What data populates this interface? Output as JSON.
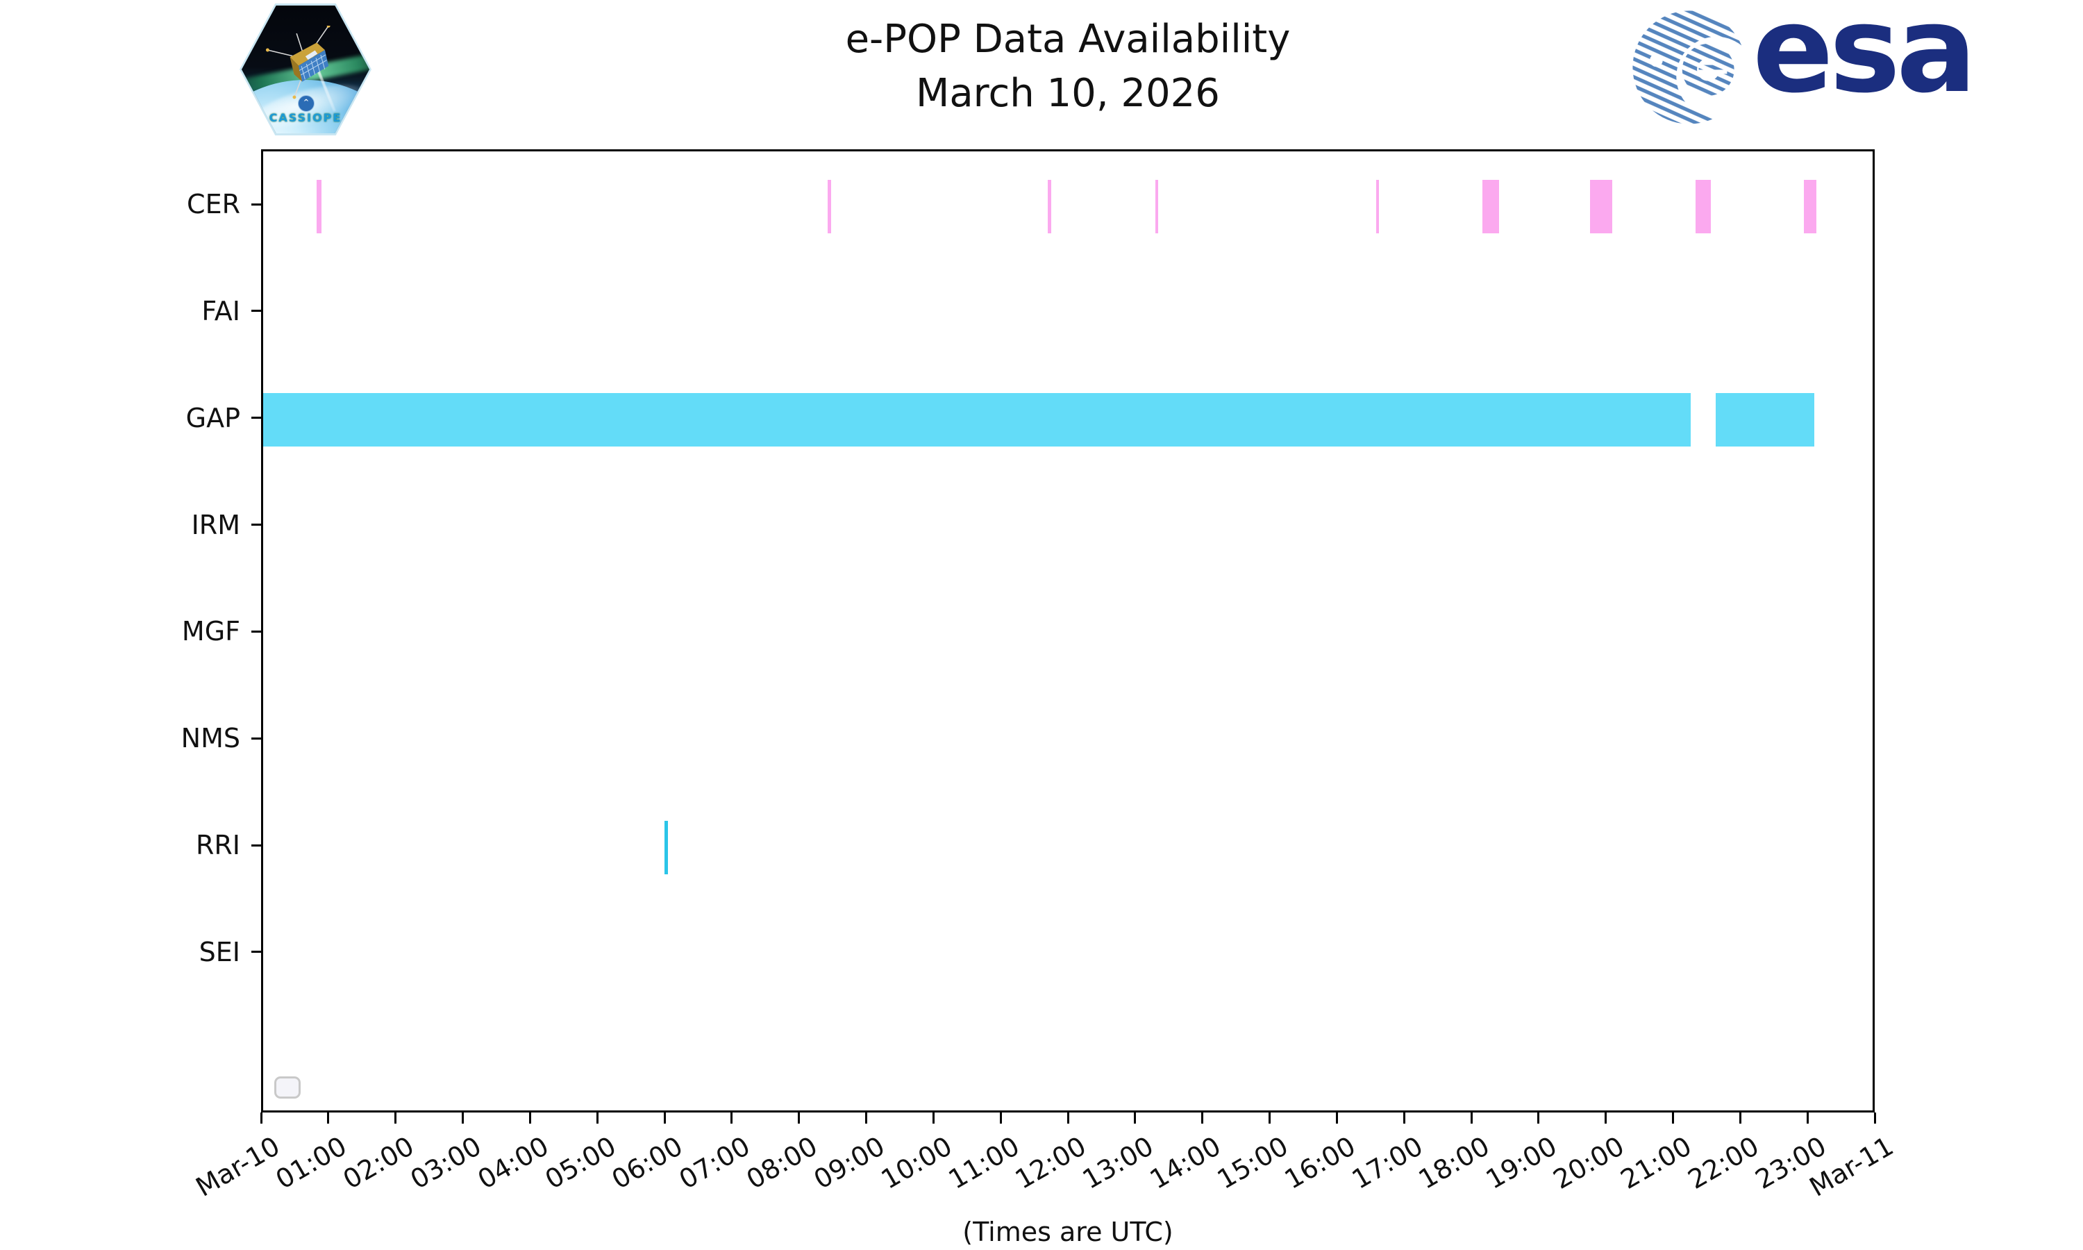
{
  "page": {
    "title_line1": "e-POP Data Availability",
    "title_line2": "March 10, 2026",
    "xaxis_caption": "(Times are UTC)"
  },
  "branding": {
    "mission_patch_text": "CASSIOPE",
    "esa_logo_text": "esa"
  },
  "colors": {
    "cer_pink": "#FBA9EF",
    "gap_cyan": "#63DCF8",
    "rri_cyan": "#2BC5E8",
    "esa_navy": "#1B2E7F",
    "esa_stripe_blue": "#5585BE"
  },
  "chart_data": {
    "type": "bar",
    "subtype": "gantt-availability-timeline",
    "title": "e-POP Data Availability — March 10, 2026",
    "rows": [
      "CER",
      "FAI",
      "GAP",
      "IRM",
      "MGF",
      "NMS",
      "RRI",
      "SEI"
    ],
    "x_tick_labels": [
      "Mar-10",
      "01:00",
      "02:00",
      "03:00",
      "04:00",
      "05:00",
      "06:00",
      "07:00",
      "08:00",
      "09:00",
      "10:00",
      "11:00",
      "12:00",
      "13:00",
      "14:00",
      "15:00",
      "16:00",
      "17:00",
      "18:00",
      "19:00",
      "20:00",
      "21:00",
      "22:00",
      "23:00",
      "Mar-11"
    ],
    "x_range_hours": [
      0,
      24
    ],
    "grid": false,
    "legend": "empty-rounded-box-bottom-left",
    "intervals": [
      {
        "row": "CER",
        "start": "00:48",
        "end": "00:52",
        "color_key": "cer_pink"
      },
      {
        "row": "CER",
        "start": "08:24",
        "end": "08:27",
        "color_key": "cer_pink"
      },
      {
        "row": "CER",
        "start": "11:40",
        "end": "11:43",
        "color_key": "cer_pink"
      },
      {
        "row": "CER",
        "start": "13:16",
        "end": "13:19",
        "color_key": "cer_pink"
      },
      {
        "row": "CER",
        "start": "16:33",
        "end": "16:35",
        "color_key": "cer_pink"
      },
      {
        "row": "CER",
        "start": "18:08",
        "end": "18:23",
        "color_key": "cer_pink"
      },
      {
        "row": "CER",
        "start": "19:44",
        "end": "20:04",
        "color_key": "cer_pink"
      },
      {
        "row": "CER",
        "start": "21:18",
        "end": "21:32",
        "color_key": "cer_pink"
      },
      {
        "row": "CER",
        "start": "22:55",
        "end": "23:06",
        "color_key": "cer_pink"
      },
      {
        "row": "GAP",
        "start": "00:00",
        "end": "21:14",
        "color_key": "gap_cyan"
      },
      {
        "row": "GAP",
        "start": "21:36",
        "end": "23:04",
        "color_key": "gap_cyan"
      },
      {
        "row": "RRI",
        "start": "05:58",
        "end": "06:01",
        "color_key": "rri_cyan"
      }
    ]
  }
}
